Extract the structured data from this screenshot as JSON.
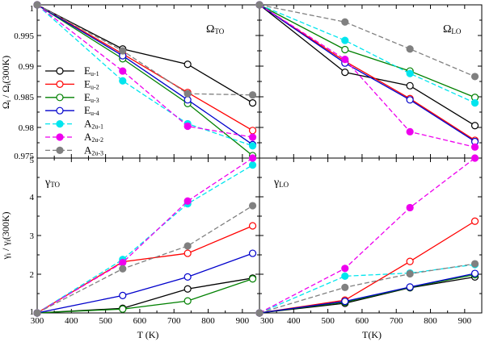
{
  "chart_data": {
    "type": "line",
    "x": [
      300,
      550,
      740,
      930
    ],
    "xlabel": "T (K)",
    "xlabel_right": "T(K)",
    "xlim": [
      300,
      950
    ],
    "xticks": [
      300,
      400,
      500,
      600,
      700,
      800,
      900
    ],
    "series_styles": [
      {
        "name": "E",
        "sub": "u-1",
        "color": "#000000",
        "filled": false,
        "dash": ""
      },
      {
        "name": "E",
        "sub": "u-2",
        "color": "#ff0000",
        "filled": false,
        "dash": ""
      },
      {
        "name": "E",
        "sub": "u-3",
        "color": "#008000",
        "filled": false,
        "dash": ""
      },
      {
        "name": "E",
        "sub": "u-4",
        "color": "#0000cc",
        "filled": false,
        "dash": ""
      },
      {
        "name": "A",
        "sub": "2u-1",
        "color": "#00e5ee",
        "filled": true,
        "dash": "6,3"
      },
      {
        "name": "A",
        "sub": "2u-2",
        "color": "#ee00ee",
        "filled": true,
        "dash": "6,3"
      },
      {
        "name": "A",
        "sub": "2u-3",
        "color": "#808080",
        "filled": true,
        "dash": "6,3"
      }
    ],
    "panels": [
      {
        "id": "omega-to",
        "label": "Ω",
        "label_sub": "TO",
        "ylabel": "Ω",
        "ylabel_tail": "(300K)",
        "ylim": [
          0.975,
          1.0
        ],
        "yticks": [
          "1",
          "0.995",
          "0.99",
          "0.985",
          "0.98",
          "0.975"
        ],
        "ytick_values": [
          1.0,
          0.995,
          0.99,
          0.985,
          0.98,
          0.975
        ],
        "series": [
          [
            1.0,
            0.9928,
            0.9903,
            0.984
          ],
          [
            1.0,
            0.992,
            0.9857,
            0.9795
          ],
          [
            1.0,
            0.9912,
            0.9839,
            0.9754
          ],
          [
            1.0,
            0.9917,
            0.9845,
            0.9772
          ],
          [
            1.0,
            0.9876,
            0.9806,
            0.977
          ],
          [
            1.0,
            0.9892,
            0.9802,
            0.9784
          ],
          [
            1.0,
            0.9925,
            0.9855,
            0.9853
          ]
        ]
      },
      {
        "id": "omega-lo",
        "label": "Ω",
        "label_sub": "LO",
        "ylim": [
          0.975,
          1.0
        ],
        "ytick_values": [
          1.0,
          0.995,
          0.99,
          0.985,
          0.98,
          0.975
        ],
        "series": [
          [
            1.0,
            0.989,
            0.9868,
            0.9803
          ],
          [
            1.0,
            0.9908,
            0.9847,
            0.9779
          ],
          [
            1.0,
            0.9927,
            0.9892,
            0.9849
          ],
          [
            1.0,
            0.9905,
            0.9845,
            0.9777
          ],
          [
            1.0,
            0.9942,
            0.9888,
            0.984
          ],
          [
            1.0,
            0.9911,
            0.9793,
            0.9768
          ],
          [
            1.0,
            0.9972,
            0.9928,
            0.9883
          ]
        ]
      },
      {
        "id": "gamma-to",
        "label": "γ",
        "label_sub": "TO",
        "ylabel": "γ",
        "ylabel_tail": "(300K)",
        "ylim": [
          1,
          5
        ],
        "yticks": [
          "1",
          "2",
          "3",
          "4",
          "5"
        ],
        "ytick_values": [
          1,
          2,
          3,
          4,
          5
        ],
        "series": [
          [
            1.0,
            1.12,
            1.62,
            1.9
          ],
          [
            1.0,
            2.32,
            2.54,
            3.25
          ],
          [
            1.0,
            1.1,
            1.31,
            1.88
          ],
          [
            1.0,
            1.45,
            1.93,
            2.54
          ],
          [
            1.0,
            2.38,
            3.82,
            4.82
          ],
          [
            1.0,
            2.3,
            3.89,
            5.0
          ],
          [
            1.0,
            2.14,
            2.73,
            3.77
          ]
        ]
      },
      {
        "id": "gamma-lo",
        "label": "γ",
        "label_sub": "LO",
        "ylim": [
          1,
          5
        ],
        "ytick_values": [
          1,
          2,
          3,
          4,
          5
        ],
        "series": [
          [
            1.0,
            1.25,
            1.65,
            1.93
          ],
          [
            1.0,
            1.33,
            2.33,
            3.37
          ],
          [
            1.0,
            1.28,
            1.66,
            1.99
          ],
          [
            1.0,
            1.3,
            1.67,
            2.02
          ],
          [
            1.0,
            1.95,
            2.03,
            2.25
          ],
          [
            1.0,
            2.15,
            3.72,
            5.0
          ],
          [
            1.0,
            1.66,
            2.01,
            2.27
          ]
        ]
      }
    ]
  }
}
